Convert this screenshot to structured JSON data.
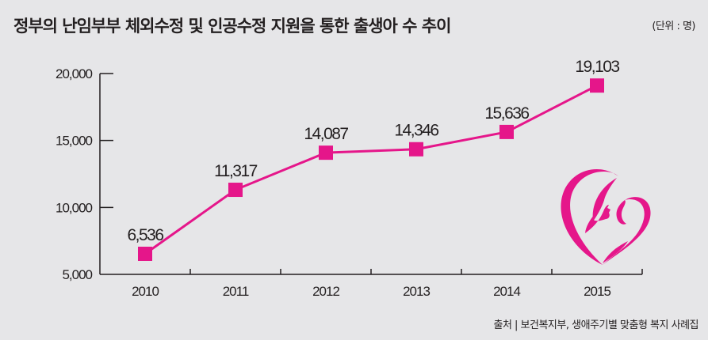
{
  "header": {
    "title": "정부의 난임부부 체외수정 및 인공수정 지원을 통한 출생아 수 추이",
    "unit": "(단위 : 명)"
  },
  "footer": {
    "source": "출처 | 보건복지부, 생애주기별 맞춤형 복지 사례집"
  },
  "logo": {
    "icon": "mother-and-baby-heart-icon",
    "color": "#e5168a"
  },
  "chart_data": {
    "type": "line",
    "title": "정부의 난임부부 체외수정 및 인공수정 지원을 통한 출생아 수 추이",
    "xlabel": "",
    "ylabel": "",
    "unit": "(단위 : 명)",
    "categories": [
      "2010",
      "2011",
      "2012",
      "2013",
      "2014",
      "2015"
    ],
    "series": [
      {
        "name": "출생아 수",
        "values": [
          6536,
          11317,
          14087,
          14346,
          15636,
          19103
        ],
        "color": "#e5168a"
      }
    ],
    "data_labels": [
      "6,536",
      "11,317",
      "14,087",
      "14,346",
      "15,636",
      "19,103"
    ],
    "yticks": [
      5000,
      10000,
      15000,
      20000
    ],
    "ytick_labels": [
      "5,000",
      "10,000",
      "15,000",
      "20,000"
    ],
    "ylim": [
      5000,
      20000
    ],
    "grid": false,
    "legend": "none",
    "marker": "square"
  }
}
